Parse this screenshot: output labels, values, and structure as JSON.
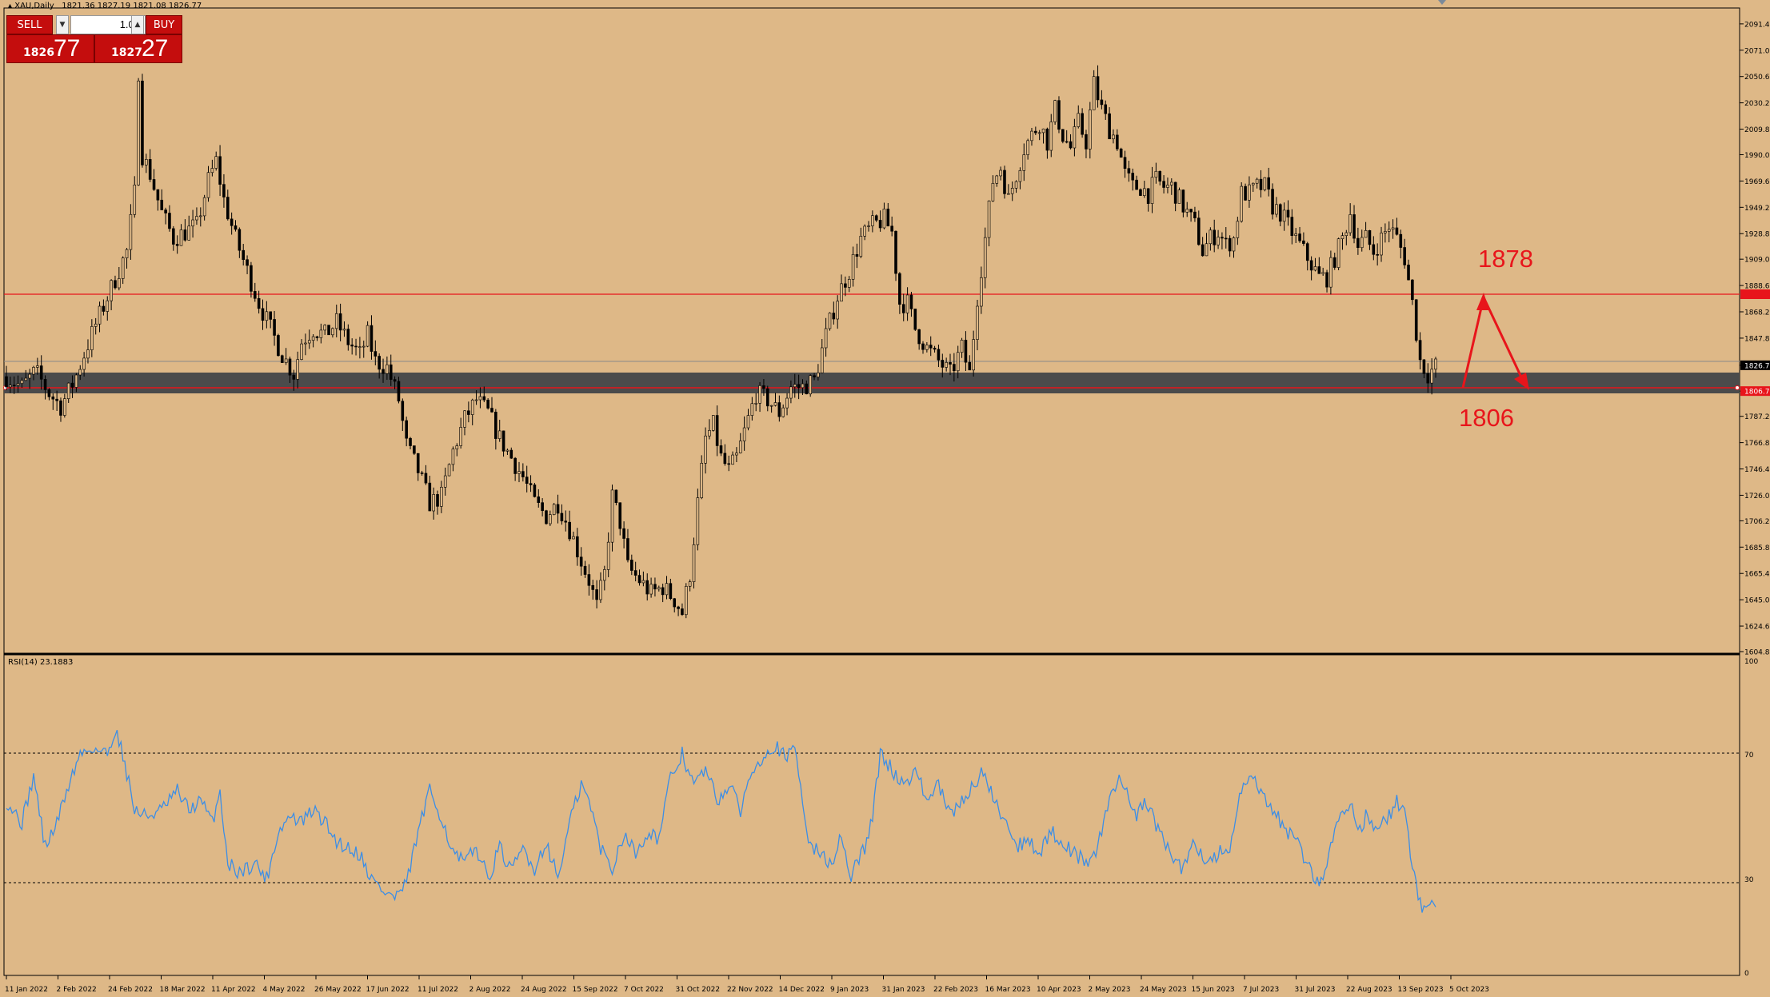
{
  "header": {
    "symbol_info": "XAU,Daily",
    "ohlc": "1821.36 1827.19 1821.08 1826.77"
  },
  "trade_panel": {
    "sell_label": "SELL",
    "buy_label": "BUY",
    "lot_value": "1.00",
    "sell_price_small": "1826",
    "sell_price_big": "77",
    "buy_price_small": "1827",
    "buy_price_big": "27"
  },
  "annotations": {
    "upper_level": "1878",
    "lower_level": "1806"
  },
  "rsi_info": "RSI(14) 23.1883",
  "colors": {
    "background": "#deb887",
    "candle": "#000000",
    "rsi_line": "#3c8ee6",
    "level_line": "#e8151b",
    "zone": "#4b4b4b",
    "arrow": "#e8151b"
  },
  "chart_data": [
    {
      "type": "candlestick",
      "series_name": "XAU,Daily",
      "price_axis_ticks": [
        "2091.40",
        "2071.00",
        "2050.60",
        "2030.20",
        "2009.80",
        "1990.00",
        "1969.60",
        "1949.20",
        "1928.80",
        "1909.00",
        "1888.60",
        "1868.20",
        "1847.80",
        "1826.77",
        "1806.76",
        "1787.20",
        "1766.80",
        "1746.40",
        "1726.00",
        "1706.20",
        "1685.80",
        "1665.40",
        "1645.00",
        "1624.60",
        "1604.80"
      ],
      "time_axis_labels": [
        "11 Jan 2022",
        "2 Feb 2022",
        "24 Feb 2022",
        "18 Mar 2022",
        "11 Apr 2022",
        "4 May 2022",
        "26 May 2022",
        "17 Jun 2022",
        "11 Jul 2022",
        "2 Aug 2022",
        "24 Aug 2022",
        "15 Sep 2022",
        "7 Oct 2022",
        "31 Oct 2022",
        "22 Nov 2022",
        "14 Dec 2022",
        "9 Jan 2023",
        "31 Jan 2023",
        "22 Feb 2023",
        "16 Mar 2023",
        "10 Apr 2023",
        "2 May 2023",
        "24 May 2023",
        "15 Jun 2023",
        "7 Jul 2023",
        "31 Jul 2023",
        "22 Aug 2023",
        "13 Sep 2023",
        "5 Oct 2023"
      ],
      "ylim": [
        1604.8,
        2100
      ],
      "price_path_anchors": [
        [
          0,
          1818
        ],
        [
          8,
          1810
        ],
        [
          15,
          1822
        ],
        [
          22,
          1805
        ],
        [
          28,
          1795
        ],
        [
          35,
          1815
        ],
        [
          45,
          1855
        ],
        [
          55,
          1890
        ],
        [
          62,
          1915
        ],
        [
          66,
          1960
        ],
        [
          68,
          2055
        ],
        [
          70,
          1990
        ],
        [
          74,
          1975
        ],
        [
          80,
          1945
        ],
        [
          86,
          1925
        ],
        [
          92,
          1930
        ],
        [
          98,
          1935
        ],
        [
          104,
          1970
        ],
        [
          108,
          1985
        ],
        [
          112,
          1955
        ],
        [
          118,
          1925
        ],
        [
          124,
          1900
        ],
        [
          130,
          1875
        ],
        [
          136,
          1855
        ],
        [
          142,
          1835
        ],
        [
          148,
          1820
        ],
        [
          152,
          1845
        ],
        [
          158,
          1855
        ],
        [
          164,
          1850
        ],
        [
          170,
          1860
        ],
        [
          176,
          1845
        ],
        [
          182,
          1835
        ],
        [
          186,
          1850
        ],
        [
          190,
          1830
        ],
        [
          196,
          1825
        ],
        [
          202,
          1800
        ],
        [
          206,
          1765
        ],
        [
          212,
          1745
        ],
        [
          218,
          1720
        ],
        [
          224,
          1725
        ],
        [
          230,
          1760
        ],
        [
          236,
          1785
        ],
        [
          242,
          1800
        ],
        [
          248,
          1790
        ],
        [
          254,
          1770
        ],
        [
          260,
          1755
        ],
        [
          266,
          1740
        ],
        [
          272,
          1720
        ],
        [
          278,
          1710
        ],
        [
          284,
          1720
        ],
        [
          290,
          1700
        ],
        [
          296,
          1675
        ],
        [
          300,
          1660
        ],
        [
          304,
          1640
        ],
        [
          308,
          1665
        ],
        [
          312,
          1725
        ],
        [
          316,
          1705
        ],
        [
          320,
          1670
        ],
        [
          326,
          1660
        ],
        [
          332,
          1650
        ],
        [
          338,
          1655
        ],
        [
          344,
          1645
        ],
        [
          348,
          1635
        ],
        [
          352,
          1665
        ],
        [
          356,
          1720
        ],
        [
          360,
          1770
        ],
        [
          364,
          1780
        ],
        [
          368,
          1755
        ],
        [
          372,
          1745
        ],
        [
          376,
          1755
        ],
        [
          380,
          1775
        ],
        [
          386,
          1805
        ],
        [
          392,
          1800
        ],
        [
          398,
          1790
        ],
        [
          404,
          1810
        ],
        [
          410,
          1810
        ],
        [
          416,
          1815
        ],
        [
          422,
          1850
        ],
        [
          428,
          1880
        ],
        [
          434,
          1900
        ],
        [
          440,
          1925
        ],
        [
          446,
          1935
        ],
        [
          452,
          1940
        ],
        [
          456,
          1930
        ],
        [
          460,
          1875
        ],
        [
          464,
          1875
        ],
        [
          468,
          1855
        ],
        [
          474,
          1840
        ],
        [
          480,
          1830
        ],
        [
          486,
          1820
        ],
        [
          492,
          1840
        ],
        [
          496,
          1820
        ],
        [
          500,
          1880
        ],
        [
          504,
          1925
        ],
        [
          508,
          1970
        ],
        [
          512,
          1980
        ],
        [
          516,
          1955
        ],
        [
          520,
          1975
        ],
        [
          524,
          1995
        ],
        [
          528,
          2005
        ],
        [
          532,
          2015
        ],
        [
          536,
          2000
        ],
        [
          540,
          2025
        ],
        [
          544,
          2005
        ],
        [
          548,
          1995
        ],
        [
          552,
          2015
        ],
        [
          556,
          2000
        ],
        [
          560,
          2045
        ],
        [
          564,
          2025
        ],
        [
          568,
          2010
        ],
        [
          572,
          2000
        ],
        [
          576,
          1975
        ],
        [
          580,
          1965
        ],
        [
          584,
          1965
        ],
        [
          588,
          1960
        ],
        [
          592,
          1970
        ],
        [
          596,
          1965
        ],
        [
          600,
          1965
        ],
        [
          604,
          1955
        ],
        [
          608,
          1945
        ],
        [
          612,
          1935
        ],
        [
          616,
          1915
        ],
        [
          620,
          1925
        ],
        [
          624,
          1930
        ],
        [
          628,
          1920
        ],
        [
          632,
          1925
        ],
        [
          636,
          1960
        ],
        [
          640,
          1960
        ],
        [
          644,
          1965
        ],
        [
          648,
          1965
        ],
        [
          652,
          1950
        ],
        [
          656,
          1945
        ],
        [
          660,
          1935
        ],
        [
          664,
          1925
        ],
        [
          668,
          1915
        ],
        [
          672,
          1905
        ],
        [
          676,
          1895
        ],
        [
          680,
          1895
        ],
        [
          684,
          1910
        ],
        [
          688,
          1925
        ],
        [
          692,
          1945
        ],
        [
          696,
          1920
        ],
        [
          700,
          1925
        ],
        [
          704,
          1915
        ],
        [
          708,
          1925
        ],
        [
          712,
          1935
        ],
        [
          716,
          1925
        ],
        [
          720,
          1910
        ],
        [
          724,
          1875
        ],
        [
          728,
          1830
        ],
        [
          732,
          1820
        ],
        [
          736,
          1826
        ]
      ]
    },
    {
      "type": "line",
      "series_name": "RSI(14)",
      "value_display": "23.1883",
      "ylim": [
        0,
        100
      ],
      "y_ticks": [
        "100",
        "70",
        "30",
        "0"
      ],
      "levels": [
        70,
        30
      ],
      "rsi_anchors": [
        [
          0,
          55
        ],
        [
          8,
          48
        ],
        [
          14,
          63
        ],
        [
          20,
          40
        ],
        [
          26,
          48
        ],
        [
          32,
          60
        ],
        [
          38,
          70
        ],
        [
          44,
          72
        ],
        [
          52,
          70
        ],
        [
          56,
          78
        ],
        [
          60,
          70
        ],
        [
          66,
          52
        ],
        [
          72,
          50
        ],
        [
          80,
          52
        ],
        [
          88,
          58
        ],
        [
          94,
          52
        ],
        [
          100,
          55
        ],
        [
          106,
          48
        ],
        [
          110,
          58
        ],
        [
          114,
          35
        ],
        [
          120,
          32
        ],
        [
          128,
          35
        ],
        [
          134,
          30
        ],
        [
          140,
          45
        ],
        [
          146,
          50
        ],
        [
          152,
          48
        ],
        [
          158,
          52
        ],
        [
          164,
          48
        ],
        [
          170,
          42
        ],
        [
          176,
          40
        ],
        [
          182,
          38
        ],
        [
          188,
          30
        ],
        [
          194,
          26
        ],
        [
          200,
          24
        ],
        [
          206,
          28
        ],
        [
          212,
          45
        ],
        [
          218,
          58
        ],
        [
          224,
          50
        ],
        [
          230,
          38
        ],
        [
          236,
          35
        ],
        [
          242,
          40
        ],
        [
          248,
          30
        ],
        [
          254,
          40
        ],
        [
          260,
          32
        ],
        [
          266,
          40
        ],
        [
          272,
          33
        ],
        [
          278,
          42
        ],
        [
          284,
          30
        ],
        [
          290,
          48
        ],
        [
          296,
          60
        ],
        [
          300,
          55
        ],
        [
          306,
          40
        ],
        [
          312,
          33
        ],
        [
          318,
          45
        ],
        [
          324,
          38
        ],
        [
          330,
          45
        ],
        [
          336,
          43
        ],
        [
          342,
          62
        ],
        [
          348,
          70
        ],
        [
          354,
          60
        ],
        [
          360,
          65
        ],
        [
          366,
          55
        ],
        [
          372,
          60
        ],
        [
          378,
          52
        ],
        [
          384,
          65
        ],
        [
          390,
          70
        ],
        [
          396,
          73
        ],
        [
          402,
          68
        ],
        [
          406,
          73
        ],
        [
          410,
          55
        ],
        [
          414,
          40
        ],
        [
          420,
          38
        ],
        [
          426,
          33
        ],
        [
          430,
          45
        ],
        [
          434,
          30
        ],
        [
          438,
          35
        ],
        [
          442,
          40
        ],
        [
          446,
          50
        ],
        [
          450,
          70
        ],
        [
          456,
          65
        ],
        [
          462,
          60
        ],
        [
          468,
          65
        ],
        [
          474,
          55
        ],
        [
          480,
          60
        ],
        [
          486,
          50
        ],
        [
          492,
          55
        ],
        [
          498,
          60
        ],
        [
          504,
          65
        ],
        [
          508,
          55
        ],
        [
          514,
          50
        ],
        [
          520,
          40
        ],
        [
          526,
          43
        ],
        [
          532,
          38
        ],
        [
          538,
          45
        ],
        [
          544,
          42
        ],
        [
          550,
          38
        ],
        [
          556,
          35
        ],
        [
          562,
          40
        ],
        [
          568,
          55
        ],
        [
          572,
          62
        ],
        [
          576,
          60
        ],
        [
          582,
          50
        ],
        [
          586,
          55
        ],
        [
          590,
          50
        ],
        [
          596,
          42
        ],
        [
          602,
          35
        ],
        [
          606,
          33
        ],
        [
          612,
          42
        ],
        [
          618,
          35
        ],
        [
          624,
          38
        ],
        [
          630,
          40
        ],
        [
          636,
          58
        ],
        [
          642,
          62
        ],
        [
          648,
          55
        ],
        [
          654,
          50
        ],
        [
          660,
          45
        ],
        [
          666,
          40
        ],
        [
          672,
          32
        ],
        [
          676,
          28
        ],
        [
          680,
          35
        ],
        [
          684,
          45
        ],
        [
          688,
          52
        ],
        [
          692,
          55
        ],
        [
          696,
          45
        ],
        [
          700,
          50
        ],
        [
          706,
          45
        ],
        [
          712,
          50
        ],
        [
          716,
          55
        ],
        [
          720,
          50
        ],
        [
          724,
          35
        ],
        [
          728,
          22
        ],
        [
          732,
          20
        ],
        [
          736,
          23
        ]
      ]
    }
  ]
}
